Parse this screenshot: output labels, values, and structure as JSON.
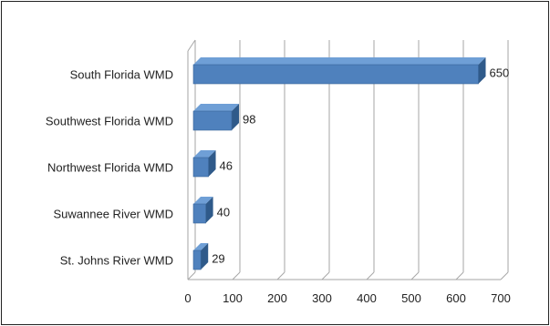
{
  "chart_data": {
    "type": "bar",
    "orientation": "horizontal",
    "style": "3d",
    "title": "",
    "xlabel": "",
    "ylabel": "",
    "categories": [
      "South Florida WMD",
      "Southwest Florida WMD",
      "Northwest Florida WMD",
      "Suwannee River WMD",
      "St. Johns River WMD"
    ],
    "values": [
      650,
      98,
      46,
      40,
      29
    ],
    "data_labels": [
      "650",
      "98",
      "46",
      "40",
      "29"
    ],
    "xlim": [
      0,
      700
    ],
    "ticks": [
      0,
      100,
      200,
      300,
      400,
      500,
      600,
      700
    ],
    "tick_labels": [
      "0",
      "100",
      "200",
      "300",
      "400",
      "500",
      "600",
      "700"
    ],
    "grid": true,
    "legend": "none",
    "colors": {
      "bar_front": "#4f81bd",
      "bar_top": "#6f9fd6",
      "bar_side": "#2f5a8a",
      "gridline": "#a6a6a6"
    }
  }
}
